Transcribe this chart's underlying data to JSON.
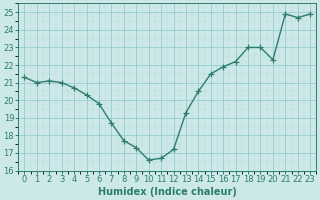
{
  "x": [
    0,
    1,
    2,
    3,
    4,
    5,
    6,
    7,
    8,
    9,
    10,
    11,
    12,
    13,
    14,
    15,
    16,
    17,
    18,
    19,
    20,
    21,
    22,
    23
  ],
  "y": [
    21.3,
    21.0,
    21.1,
    21.0,
    20.7,
    20.3,
    19.8,
    18.7,
    17.7,
    17.3,
    16.6,
    16.7,
    17.2,
    19.3,
    20.5,
    21.5,
    21.9,
    22.2,
    23.0,
    23.0,
    22.3,
    24.9,
    24.7,
    24.9
  ],
  "line_color": "#2d7d6e",
  "marker": "+",
  "marker_size": 4,
  "bg_color": "#cce8e8",
  "grid_major_color": "#99cccc",
  "grid_minor_color": "#b8dddd",
  "xlabel": "Humidex (Indice chaleur)",
  "ylim": [
    16,
    25.5
  ],
  "xlim": [
    -0.5,
    23.5
  ],
  "yticks": [
    16,
    17,
    18,
    19,
    20,
    21,
    22,
    23,
    24,
    25
  ],
  "xticks": [
    0,
    1,
    2,
    3,
    4,
    5,
    6,
    7,
    8,
    9,
    10,
    11,
    12,
    13,
    14,
    15,
    16,
    17,
    18,
    19,
    20,
    21,
    22,
    23
  ],
  "xlabel_fontsize": 7,
  "tick_fontsize": 6,
  "line_width": 1.0
}
